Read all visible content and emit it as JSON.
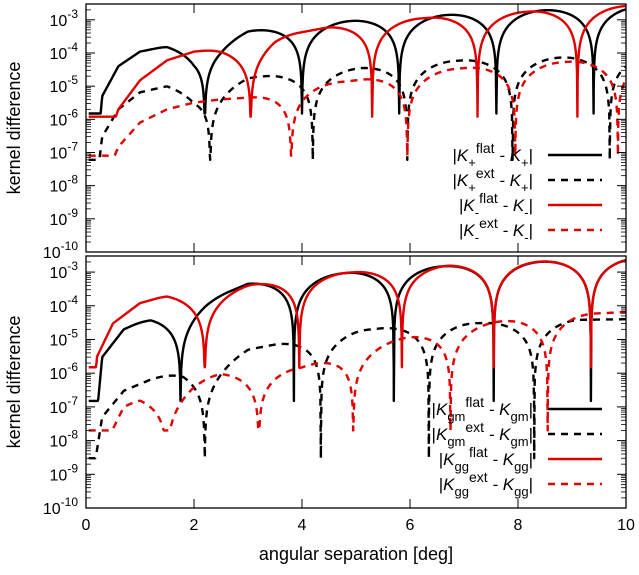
{
  "chart_data": [
    {
      "type": "line",
      "ylabel": "kernel difference",
      "xlabel": "",
      "xlim": [
        0,
        10
      ],
      "ylim": [
        1e-10,
        0.003
      ],
      "yscale": "log",
      "x_ticks": [],
      "y_tick_labels": [
        {
          "value": 1e-10,
          "label": "10-10",
          "base": "10",
          "exp": "-10"
        },
        {
          "value": 1e-09,
          "label": "10-9",
          "base": "10",
          "exp": "-9"
        },
        {
          "value": 1e-08,
          "label": "10-8",
          "base": "10",
          "exp": "-8"
        },
        {
          "value": 1e-07,
          "label": "10-7",
          "base": "10",
          "exp": "-7"
        },
        {
          "value": 1e-06,
          "label": "10-6",
          "base": "10",
          "exp": "-6"
        },
        {
          "value": 1e-05,
          "label": "10-5",
          "base": "10",
          "exp": "-5"
        },
        {
          "value": 0.0001,
          "label": "10-4",
          "base": "10",
          "exp": "-4"
        },
        {
          "value": 0.001,
          "label": "10-3",
          "base": "10",
          "exp": "-3"
        }
      ],
      "legend_position": "bottom-right",
      "series": [
        {
          "name": "|K+flat - K+|",
          "legend": {
            "k": "K",
            "sub1": "+",
            "sup": "flat",
            "minus": "- K",
            "sub2": "+"
          },
          "color": "#000000",
          "dash": "solid",
          "envelope": [
            [
              0.05,
              1.5e-10
            ],
            [
              0.3,
              5e-06
            ],
            [
              0.6,
              4e-05
            ],
            [
              1.0,
              0.00011
            ],
            [
              1.5,
              0.00016
            ],
            [
              2.0,
              0.00012
            ],
            [
              2.5,
              0.0002
            ],
            [
              3.0,
              0.00045
            ],
            [
              4.0,
              0.0007
            ],
            [
              5.0,
              0.00095
            ],
            [
              6.0,
              0.0012
            ],
            [
              7.0,
              0.0015
            ],
            [
              8.0,
              0.0018
            ],
            [
              9.0,
              0.0021
            ],
            [
              10.0,
              0.0024
            ]
          ],
          "zeros": [
            2.2,
            4.0,
            5.8,
            7.6,
            9.4
          ],
          "floor": 1.5e-06
        },
        {
          "name": "|K+ext - K+|",
          "legend": {
            "k": "K",
            "sub1": "+",
            "sup": "ext",
            "minus": "- K",
            "sub2": "+"
          },
          "color": "#000000",
          "dash": "dashed",
          "envelope": [
            [
              0.05,
              1.5e-10
            ],
            [
              0.3,
              3e-07
            ],
            [
              0.6,
              2e-06
            ],
            [
              1.0,
              6.5e-06
            ],
            [
              1.5,
              1e-05
            ],
            [
              2.0,
              6e-06
            ],
            [
              2.5,
              1e-05
            ],
            [
              3.0,
              1.8e-05
            ],
            [
              4.0,
              2.5e-05
            ],
            [
              5.0,
              3.4e-05
            ],
            [
              6.0,
              4.8e-05
            ],
            [
              7.0,
              6e-05
            ],
            [
              8.0,
              6.5e-05
            ],
            [
              9.0,
              7.5e-05
            ],
            [
              10.0,
              7.8e-05
            ]
          ],
          "zeros": [
            2.3,
            4.2,
            5.95,
            7.9,
            9.7
          ],
          "floor": 6e-08
        },
        {
          "name": "|K-flat - K-|",
          "legend": {
            "k": "K",
            "sub1": "-",
            "sup": "flat",
            "minus": "- K",
            "sub2": "-"
          },
          "color": "#e00000",
          "dash": "solid",
          "envelope": [
            [
              0.05,
              1.5e-10
            ],
            [
              0.3,
              8e-08
            ],
            [
              0.6,
              2e-06
            ],
            [
              1.0,
              1.5e-05
            ],
            [
              1.5,
              6e-05
            ],
            [
              2.0,
              0.00011
            ],
            [
              2.5,
              0.00013
            ],
            [
              3.0,
              0.00013
            ],
            [
              3.5,
              0.0003
            ],
            [
              4.5,
              0.0006
            ],
            [
              5.5,
              0.0009
            ],
            [
              6.5,
              0.0012
            ],
            [
              7.5,
              0.0015
            ],
            [
              8.5,
              0.0019
            ],
            [
              10.0,
              0.0026
            ]
          ],
          "zeros": [
            3.05,
            5.3,
            7.25,
            9.1
          ],
          "floor": 1.2e-06
        },
        {
          "name": "|K-ext - K-|",
          "legend": {
            "k": "K",
            "sub1": "-",
            "sup": "ext",
            "minus": "- K",
            "sub2": "-"
          },
          "color": "#e00000",
          "dash": "dashed",
          "envelope": [
            [
              0.05,
              1.5e-10
            ],
            [
              0.3,
              1e-08
            ],
            [
              0.6,
              1.5e-07
            ],
            [
              1.0,
              8e-07
            ],
            [
              1.5,
              2e-06
            ],
            [
              2.0,
              3.2e-06
            ],
            [
              2.5,
              4e-06
            ],
            [
              3.0,
              4.5e-06
            ],
            [
              4.0,
              1e-05
            ],
            [
              5.0,
              1.5e-05
            ],
            [
              6.0,
              2.5e-05
            ],
            [
              7.0,
              3.5e-05
            ],
            [
              8.0,
              4.5e-05
            ],
            [
              9.0,
              5.5e-05
            ],
            [
              10.0,
              6.2e-05
            ]
          ],
          "zeros": [
            3.8,
            5.95,
            7.95,
            9.85
          ],
          "floor": 8e-08
        }
      ]
    },
    {
      "type": "line",
      "ylabel": "kernel difference",
      "xlabel": "angular separation [deg]",
      "xlim": [
        0,
        10
      ],
      "ylim": [
        1e-10,
        0.003
      ],
      "yscale": "log",
      "x_ticks": [
        "0",
        "2",
        "4",
        "6",
        "8",
        "10"
      ],
      "x_tick_values": [
        0,
        2,
        4,
        6,
        8,
        10
      ],
      "y_tick_labels": [
        {
          "value": 1e-10,
          "label": "10-10",
          "base": "10",
          "exp": "-10"
        },
        {
          "value": 1e-09,
          "label": "10-9",
          "base": "10",
          "exp": "-9"
        },
        {
          "value": 1e-08,
          "label": "10-8",
          "base": "10",
          "exp": "-8"
        },
        {
          "value": 1e-07,
          "label": "10-7",
          "base": "10",
          "exp": "-7"
        },
        {
          "value": 1e-06,
          "label": "10-6",
          "base": "10",
          "exp": "-6"
        },
        {
          "value": 1e-05,
          "label": "10-5",
          "base": "10",
          "exp": "-5"
        },
        {
          "value": 0.0001,
          "label": "10-4",
          "base": "10",
          "exp": "-4"
        },
        {
          "value": 0.001,
          "label": "10-3",
          "base": "10",
          "exp": "-3"
        }
      ],
      "legend_position": "bottom-right",
      "series": [
        {
          "name": "|Kgmflat - Kgm|",
          "legend": {
            "k": "K",
            "sub1": "gm",
            "sup": "flat",
            "minus": "- K",
            "sub2": "gm"
          },
          "color": "#000000",
          "dash": "solid",
          "envelope": [
            [
              0.05,
              1.5e-10
            ],
            [
              0.3,
              3e-06
            ],
            [
              0.7,
              2e-05
            ],
            [
              1.2,
              4.5e-05
            ],
            [
              1.7,
              5e-05
            ],
            [
              2.2,
              0.00013
            ],
            [
              3.0,
              0.00045
            ],
            [
              4.0,
              0.0007
            ],
            [
              5.0,
              0.001
            ],
            [
              6.0,
              0.0013
            ],
            [
              7.0,
              0.0016
            ],
            [
              8.0,
              0.0019
            ],
            [
              9.0,
              0.0022
            ],
            [
              10.0,
              0.0025
            ]
          ],
          "zeros": [
            1.75,
            3.85,
            5.7,
            7.55,
            9.35
          ],
          "floor": 1.5e-07
        },
        {
          "name": "|Kgmext - Kgm|",
          "legend": {
            "k": "K",
            "sub1": "gm",
            "sup": "ext",
            "minus": "- K",
            "sub2": "gm"
          },
          "color": "#000000",
          "dash": "dashed",
          "envelope": [
            [
              0.05,
              1.5e-10
            ],
            [
              0.3,
              5e-08
            ],
            [
              0.7,
              3e-07
            ],
            [
              1.2,
              6.5e-07
            ],
            [
              1.8,
              1.2e-06
            ],
            [
              2.2,
              1e-06
            ],
            [
              3.0,
              5e-06
            ],
            [
              4.0,
              1e-05
            ],
            [
              5.0,
              1.8e-05
            ],
            [
              6.0,
              2.6e-05
            ],
            [
              7.0,
              3e-05
            ],
            [
              8.0,
              3.2e-05
            ],
            [
              9.0,
              3.8e-05
            ],
            [
              10.0,
              4e-05
            ]
          ],
          "zeros": [
            2.2,
            4.35,
            6.35,
            8.3
          ],
          "floor": 3e-09
        },
        {
          "name": "|Kggflat - Kgg|",
          "legend": {
            "k": "K",
            "sub1": "gg",
            "sup": "flat",
            "minus": "- K",
            "sub2": "gg"
          },
          "color": "#e00000",
          "dash": "solid",
          "envelope": [
            [
              0.05,
              1.5e-10
            ],
            [
              0.2,
              3e-06
            ],
            [
              0.5,
              3e-05
            ],
            [
              1.0,
              0.00012
            ],
            [
              1.5,
              0.0002
            ],
            [
              2.2,
              0.00018
            ],
            [
              3.0,
              0.0004
            ],
            [
              4.0,
              0.00075
            ],
            [
              5.0,
              0.001
            ],
            [
              6.0,
              0.00135
            ],
            [
              7.0,
              0.00165
            ],
            [
              8.0,
              0.00195
            ],
            [
              9.0,
              0.0022
            ],
            [
              10.0,
              0.0025
            ]
          ],
          "zeros": [
            2.2,
            3.95,
            5.85,
            7.55,
            9.35
          ],
          "floor": 1.5e-06
        },
        {
          "name": "|Kggext - Kgg|",
          "legend": {
            "k": "K",
            "sub1": "gg",
            "sup": "ext",
            "minus": "- K",
            "sub2": "gg"
          },
          "color": "#e00000",
          "dash": "dashed",
          "envelope": [
            [
              0.05,
              1.5e-10
            ],
            [
              0.3,
              5e-09
            ],
            [
              0.7,
              1e-07
            ],
            [
              1.0,
              2e-07
            ],
            [
              1.5,
              1.8e-07
            ],
            [
              2.0,
              5e-07
            ],
            [
              2.5,
              1e-06
            ],
            [
              3.2,
              1.2e-06
            ],
            [
              4.0,
              1.5e-06
            ],
            [
              5.0,
              5e-06
            ],
            [
              6.0,
              1.2e-05
            ],
            [
              7.0,
              2.5e-05
            ],
            [
              8.0,
              4e-05
            ],
            [
              9.0,
              5.5e-05
            ],
            [
              10.0,
              6.5e-05
            ]
          ],
          "zeros": [
            1.5,
            3.2,
            4.95,
            6.75,
            8.55
          ],
          "floor": 2e-08
        }
      ]
    }
  ]
}
